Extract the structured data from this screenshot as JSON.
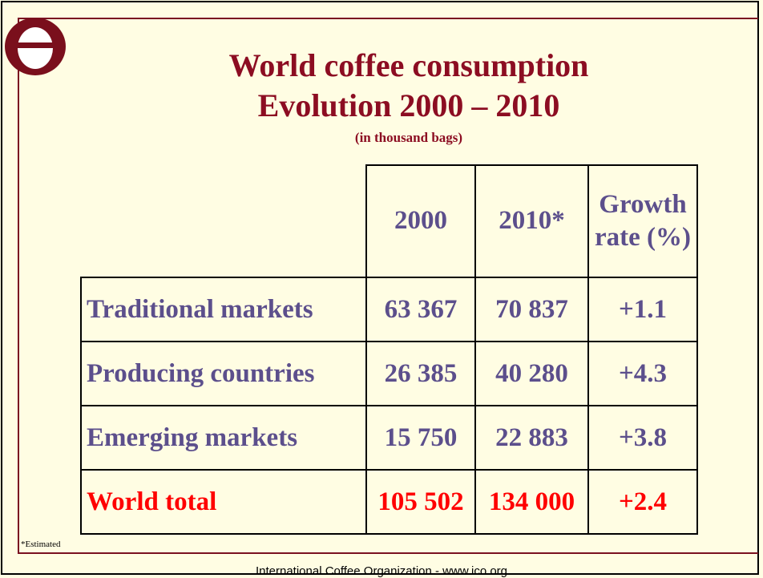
{
  "header": {
    "title_lines": [
      "World coffee consumption",
      "Evolution 2000 – 2010"
    ],
    "subtitle": "(in thousand bags)"
  },
  "table": {
    "columns": [
      "2000",
      "2010*",
      "Growth rate (%)"
    ],
    "rows": [
      [
        "Traditional markets",
        "63 367",
        "70 837",
        "+1.1"
      ],
      [
        "Producing countries",
        "26 385",
        "40 280",
        "+4.3"
      ],
      [
        "Emerging markets",
        "15 750",
        "22 883",
        "+3.8"
      ],
      [
        "World total",
        "105 502",
        "134 000",
        "+2.4"
      ]
    ]
  },
  "note": "*Estimated",
  "footer": "International Coffee Organization  -  www.ico.org"
}
